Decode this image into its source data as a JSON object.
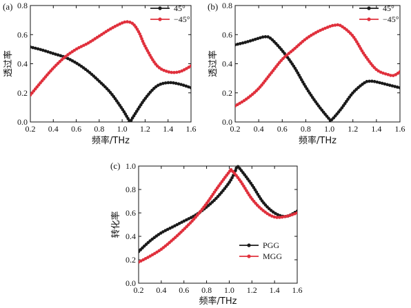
{
  "chart_data": [
    {
      "type": "line",
      "panel_label": "(a)",
      "xlabel": "频率/THz",
      "ylabel": "透过率",
      "xlim": [
        0.2,
        1.6
      ],
      "ylim": [
        0.0,
        0.8
      ],
      "xticks": [
        "0.2",
        "0.4",
        "0.6",
        "0.8",
        "1.0",
        "1.2",
        "1.4",
        "1.6"
      ],
      "yticks": [
        "0.0",
        "0.2",
        "0.4",
        "0.6",
        "0.8"
      ],
      "legend_position": "top-right",
      "series": [
        {
          "name": "45°",
          "color": "#1a1a1a",
          "x": [
            0.2,
            0.3,
            0.4,
            0.5,
            0.6,
            0.7,
            0.8,
            0.9,
            1.0,
            1.05,
            1.07,
            1.1,
            1.2,
            1.3,
            1.4,
            1.5,
            1.6
          ],
          "y": [
            0.515,
            0.495,
            0.47,
            0.445,
            0.405,
            0.35,
            0.28,
            0.2,
            0.09,
            0.025,
            0.005,
            0.04,
            0.16,
            0.245,
            0.27,
            0.26,
            0.235
          ]
        },
        {
          "name": "−45°",
          "color": "#e0303c",
          "x": [
            0.2,
            0.3,
            0.4,
            0.5,
            0.6,
            0.7,
            0.8,
            0.9,
            1.0,
            1.05,
            1.1,
            1.15,
            1.2,
            1.3,
            1.4,
            1.5,
            1.6
          ],
          "y": [
            0.185,
            0.28,
            0.37,
            0.445,
            0.5,
            0.54,
            0.59,
            0.64,
            0.68,
            0.688,
            0.67,
            0.61,
            0.52,
            0.39,
            0.345,
            0.345,
            0.385
          ]
        }
      ]
    },
    {
      "type": "line",
      "panel_label": "(b)",
      "xlabel": "频率/THz",
      "ylabel": "透过率",
      "xlim": [
        0.2,
        1.6
      ],
      "ylim": [
        0.0,
        0.8
      ],
      "xticks": [
        "0.2",
        "0.4",
        "0.6",
        "0.8",
        "1.0",
        "1.2",
        "1.4",
        "1.6"
      ],
      "yticks": [
        "0.0",
        "0.2",
        "0.4",
        "0.6",
        "0.8"
      ],
      "legend_position": "top-right",
      "series": [
        {
          "name": "45°",
          "color": "#1a1a1a",
          "x": [
            0.2,
            0.3,
            0.4,
            0.45,
            0.5,
            0.6,
            0.7,
            0.8,
            0.9,
            1.0,
            1.02,
            1.1,
            1.2,
            1.3,
            1.35,
            1.4,
            1.5,
            1.6
          ],
          "y": [
            0.53,
            0.55,
            0.575,
            0.585,
            0.575,
            0.49,
            0.38,
            0.24,
            0.12,
            0.02,
            0.015,
            0.09,
            0.2,
            0.27,
            0.28,
            0.275,
            0.255,
            0.235
          ]
        },
        {
          "name": "−45°",
          "color": "#e0303c",
          "x": [
            0.2,
            0.3,
            0.4,
            0.5,
            0.6,
            0.7,
            0.8,
            0.9,
            1.0,
            1.05,
            1.1,
            1.2,
            1.3,
            1.4,
            1.5,
            1.55,
            1.6
          ],
          "y": [
            0.11,
            0.16,
            0.23,
            0.33,
            0.43,
            0.5,
            0.57,
            0.62,
            0.655,
            0.665,
            0.66,
            0.59,
            0.46,
            0.36,
            0.325,
            0.32,
            0.345
          ]
        }
      ]
    },
    {
      "type": "line",
      "panel_label": "(c)",
      "xlabel": "频率/THz",
      "ylabel": "转化率",
      "xlim": [
        0.2,
        1.6
      ],
      "ylim": [
        0.0,
        1.0
      ],
      "xticks": [
        "0.2",
        "0.4",
        "0.6",
        "0.8",
        "1.0",
        "1.2",
        "1.4",
        "1.6"
      ],
      "yticks": [
        "0.0",
        "0.2",
        "0.4",
        "0.6",
        "0.8",
        "1.0"
      ],
      "legend_position": "bottom-left",
      "series": [
        {
          "name": "PGG",
          "color": "#1a1a1a",
          "x": [
            0.2,
            0.3,
            0.4,
            0.5,
            0.6,
            0.7,
            0.8,
            0.9,
            1.0,
            1.05,
            1.07,
            1.1,
            1.2,
            1.3,
            1.4,
            1.5,
            1.6
          ],
          "y": [
            0.27,
            0.36,
            0.43,
            0.48,
            0.53,
            0.58,
            0.65,
            0.74,
            0.86,
            0.95,
            0.995,
            0.97,
            0.84,
            0.69,
            0.6,
            0.57,
            0.615
          ]
        },
        {
          "name": "MGG",
          "color": "#e0303c",
          "x": [
            0.2,
            0.3,
            0.4,
            0.5,
            0.6,
            0.7,
            0.8,
            0.9,
            1.0,
            1.02,
            1.1,
            1.2,
            1.3,
            1.4,
            1.5,
            1.6
          ],
          "y": [
            0.18,
            0.23,
            0.29,
            0.37,
            0.46,
            0.56,
            0.68,
            0.82,
            0.95,
            0.965,
            0.87,
            0.72,
            0.62,
            0.565,
            0.57,
            0.6
          ]
        }
      ]
    }
  ]
}
